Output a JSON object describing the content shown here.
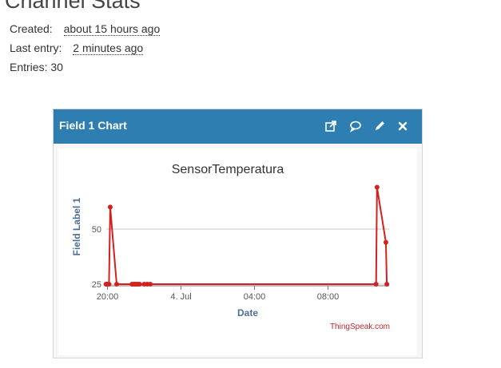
{
  "stats": {
    "title": "Channel Stats",
    "created_label": "Created:",
    "created_value": "about 15 hours ago",
    "last_entry_label": "Last entry:",
    "last_entry_value": "2 minutes ago",
    "entries_text": "Entries: 30"
  },
  "widget": {
    "title": "Field 1 Chart",
    "icons": [
      "external-link-icon",
      "comment-icon",
      "pencil-icon",
      "close-icon"
    ],
    "header_color": "#2f7eb2"
  },
  "chart_data": {
    "type": "line",
    "title": "SensorTemperatura",
    "xlabel": "Date",
    "ylabel": "Field Label 1",
    "x_tick_labels": [
      "20:00",
      "4. Jul",
      "04:00",
      "08:00"
    ],
    "y_tick_labels": [
      "25",
      "50"
    ],
    "ylim": [
      25,
      50
    ],
    "series_color": "#d62020",
    "credit": "ThingSpeak.com",
    "series": [
      {
        "values": [
          {
            "t": "19:55",
            "y": 25
          },
          {
            "t": "19:57",
            "y": 25
          },
          {
            "t": "20:00",
            "y": 25
          },
          {
            "t": "20:05",
            "y": 25
          },
          {
            "t": "20:09",
            "y": 60
          },
          {
            "t": "20:30",
            "y": 25
          },
          {
            "t": "21:20",
            "y": 25
          },
          {
            "t": "21:25",
            "y": 25
          },
          {
            "t": "21:30",
            "y": 25
          },
          {
            "t": "21:35",
            "y": 25
          },
          {
            "t": "21:40",
            "y": 25
          },
          {
            "t": "21:45",
            "y": 25
          },
          {
            "t": "22:00",
            "y": 25
          },
          {
            "t": "22:10",
            "y": 25
          },
          {
            "t": "22:20",
            "y": 25
          },
          {
            "t": "10:37",
            "y": 25
          },
          {
            "t": "10:40",
            "y": 69
          },
          {
            "t": "11:09",
            "y": 44
          },
          {
            "t": "11:12",
            "y": 25
          }
        ]
      }
    ]
  }
}
